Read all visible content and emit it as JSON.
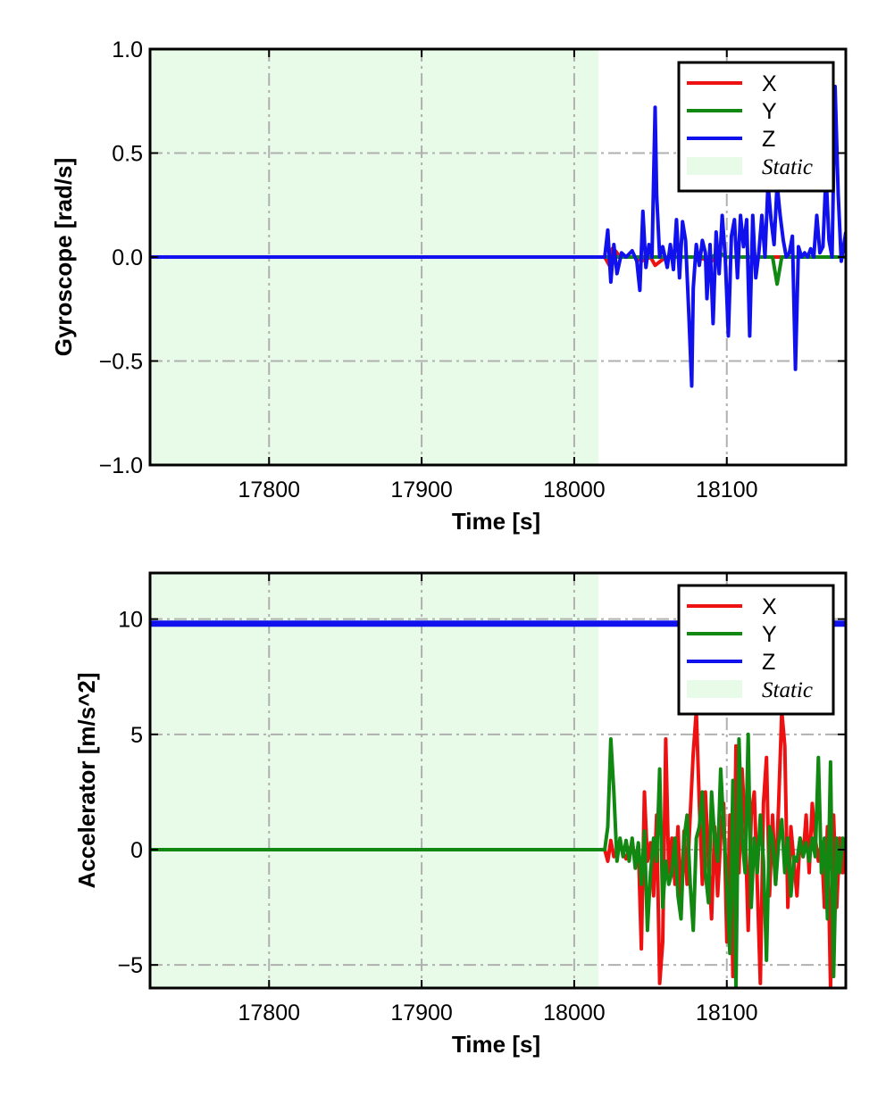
{
  "chart_data": [
    {
      "type": "line",
      "xlabel": "Time [s]",
      "ylabel": "Gyroscope [rad/s]",
      "xlim": [
        17722,
        18178
      ],
      "ylim": [
        -1.0,
        1.0
      ],
      "xticks": [
        17800,
        17900,
        18000,
        18100
      ],
      "xtick_labels": [
        "17800",
        "17900",
        "18000",
        "18100"
      ],
      "yticks": [
        1.0,
        0.5,
        0.0,
        -0.5,
        -1.0
      ],
      "ytick_labels": [
        "1.0",
        "0.5",
        "0.0",
        "−0.5",
        "−1.0"
      ],
      "grid": true,
      "legend_position": "top-right",
      "static_region": {
        "label": "Static",
        "x_start": 17722,
        "x_end": 18016,
        "color": "#e8fbe8"
      },
      "series": [
        {
          "name": "X",
          "color": "#ee1111",
          "x": [
            17722,
            18020,
            18023,
            18025,
            18027,
            18030,
            18040,
            18044,
            18050,
            18053,
            18060,
            18080,
            18090,
            18095,
            18100,
            18120,
            18130,
            18150,
            18178
          ],
          "y": [
            0,
            0,
            -0.04,
            0.04,
            0.03,
            0,
            0,
            -0.02,
            0,
            -0.04,
            0,
            0,
            -0.02,
            0.02,
            0,
            0,
            0,
            0,
            0
          ]
        },
        {
          "name": "Y",
          "color": "#118811",
          "x": [
            17722,
            18020,
            18060,
            18090,
            18095,
            18100,
            18120,
            18130,
            18133,
            18136,
            18140,
            18178
          ],
          "y": [
            0,
            0,
            0,
            0,
            0.02,
            0,
            0,
            0,
            -0.13,
            0,
            0,
            0
          ]
        },
        {
          "name": "Z",
          "color": "#1111ee",
          "x": [
            17722,
            18020,
            18022,
            18024,
            18026,
            18028,
            18031,
            18034,
            18038,
            18041,
            18043,
            18045,
            18047,
            18049,
            18051,
            18053,
            18054,
            18056,
            18058,
            18061,
            18063,
            18065,
            18067,
            18069,
            18071,
            18073,
            18075,
            18077,
            18078,
            18080,
            18082,
            18084,
            18086,
            18087,
            18089,
            18091,
            18093,
            18095,
            18097,
            18099,
            18101,
            18103,
            18105,
            18107,
            18109,
            18111,
            18113,
            18115,
            18117,
            18119,
            18121,
            18123,
            18125,
            18127,
            18129,
            18131,
            18133,
            18135,
            18137,
            18139,
            18141,
            18143,
            18145,
            18147,
            18149,
            18151,
            18153,
            18155,
            18157,
            18159,
            18161,
            18163,
            18165,
            18167,
            18169,
            18171,
            18173,
            18175,
            18178
          ],
          "y": [
            0,
            0,
            0.13,
            -0.12,
            0.06,
            -0.08,
            0.02,
            0,
            0.03,
            -0.02,
            -0.16,
            0.22,
            -0.05,
            0.06,
            0,
            0.72,
            0.3,
            0,
            0.05,
            -0.05,
            0.06,
            -0.06,
            0.18,
            -0.1,
            0.17,
            0.08,
            -0.25,
            -0.62,
            -0.15,
            0.06,
            -0.04,
            0.08,
            0.02,
            -0.2,
            0.06,
            -0.32,
            0.12,
            -0.08,
            0.2,
            0,
            -0.38,
            0.1,
            0.18,
            -0.1,
            0.2,
            0.05,
            0.18,
            -0.38,
            0.2,
            -0.1,
            0.02,
            0.2,
            0,
            0.35,
            0.18,
            0.06,
            0.35,
            0.2,
            0.08,
            0,
            0.02,
            0.1,
            -0.54,
            0.05,
            0,
            0.02,
            0,
            0.04,
            0,
            0.2,
            0.02,
            0.05,
            0.4,
            0.08,
            0,
            0.82,
            0.3,
            -0.02,
            0.12
          ]
        }
      ]
    },
    {
      "type": "line",
      "xlabel": "Time [s]",
      "ylabel": "Accelerator [m/s^2]",
      "xlim": [
        17722,
        18178
      ],
      "ylim": [
        -6,
        12
      ],
      "xticks": [
        17800,
        17900,
        18000,
        18100
      ],
      "xtick_labels": [
        "17800",
        "17900",
        "18000",
        "18100"
      ],
      "yticks": [
        10,
        5,
        0,
        -5
      ],
      "ytick_labels": [
        "10",
        "5",
        "0",
        "−5"
      ],
      "grid": true,
      "legend_position": "top-right",
      "static_region": {
        "label": "Static",
        "x_start": 17722,
        "x_end": 18016,
        "color": "#e8fbe8"
      },
      "series": [
        {
          "name": "X",
          "color": "#ee1111",
          "x": [
            17722,
            18020,
            18022,
            18024,
            18026,
            18030,
            18034,
            18038,
            18040,
            18042,
            18044,
            18046,
            18048,
            18050,
            18052,
            18054,
            18056,
            18058,
            18060,
            18062,
            18064,
            18066,
            18068,
            18070,
            18072,
            18074,
            18076,
            18078,
            18080,
            18082,
            18084,
            18086,
            18088,
            18090,
            18092,
            18094,
            18096,
            18098,
            18100,
            18102,
            18104,
            18106,
            18108,
            18110,
            18112,
            18114,
            18116,
            18118,
            18120,
            18122,
            18124,
            18126,
            18128,
            18130,
            18132,
            18134,
            18136,
            18138,
            18140,
            18142,
            18144,
            18146,
            18148,
            18150,
            18152,
            18154,
            18156,
            18158,
            18160,
            18162,
            18164,
            18166,
            18168,
            18170,
            18172,
            18174,
            18176,
            18178
          ],
          "y": [
            0,
            0,
            -0.5,
            0.4,
            -0.3,
            0.2,
            -0.4,
            0.3,
            -0.5,
            0.2,
            -4.3,
            2.5,
            -0.5,
            0.3,
            -2.0,
            1.5,
            -5.8,
            -4.0,
            4.8,
            -1.0,
            0.5,
            -1.5,
            1.0,
            -2.5,
            0.8,
            -1.5,
            1.5,
            4.2,
            6.0,
            2.0,
            -1.5,
            2.5,
            -0.5,
            -3.0,
            1.0,
            -2.0,
            0.5,
            2.0,
            -4.0,
            1.5,
            -5.5,
            4.5,
            -1.0,
            3.5,
            1.0,
            -3.5,
            1.5,
            2.5,
            -1.5,
            -5.8,
            2.0,
            4.0,
            -2.0,
            1.5,
            -1.5,
            2.0,
            6.0,
            4.5,
            -2.5,
            1.0,
            -0.5,
            -2.0,
            0.5,
            -0.3,
            1.5,
            -1.0,
            2.0,
            0.5,
            -0.5,
            0.3,
            -2.5,
            1.0,
            -6.0,
            1.5,
            -2.5,
            0.5,
            -1.0,
            0.5
          ]
        },
        {
          "name": "Y",
          "color": "#118811",
          "x": [
            17722,
            18020,
            18022,
            18024,
            18026,
            18028,
            18030,
            18032,
            18034,
            18036,
            18038,
            18040,
            18042,
            18044,
            18046,
            18048,
            18050,
            18052,
            18054,
            18056,
            18058,
            18060,
            18062,
            18064,
            18066,
            18068,
            18070,
            18072,
            18074,
            18076,
            18078,
            18080,
            18082,
            18084,
            18086,
            18088,
            18090,
            18092,
            18094,
            18096,
            18098,
            18100,
            18102,
            18104,
            18106,
            18108,
            18110,
            18112,
            18114,
            18116,
            18118,
            18120,
            18122,
            18124,
            18126,
            18128,
            18130,
            18132,
            18134,
            18136,
            18138,
            18140,
            18142,
            18144,
            18146,
            18148,
            18150,
            18152,
            18154,
            18156,
            18158,
            18160,
            18162,
            18164,
            18166,
            18168,
            18170,
            18172,
            18174,
            18176,
            18178
          ],
          "y": [
            0,
            0,
            1.0,
            4.8,
            2.5,
            -0.5,
            0.5,
            -0.3,
            0.4,
            -0.5,
            0.5,
            -0.8,
            0.3,
            -1.5,
            0.8,
            -3.5,
            -1.0,
            0.5,
            -0.5,
            3.5,
            -2.5,
            -0.5,
            -1.5,
            -1.0,
            0.5,
            -2.0,
            -3.0,
            0.5,
            1.5,
            -1.5,
            -3.5,
            0.5,
            1.0,
            2.5,
            -1.0,
            -2.3,
            2.5,
            0.5,
            -0.5,
            3.5,
            1.0,
            -1.5,
            -4.5,
            3.0,
            -6.0,
            4.8,
            0.5,
            -1.0,
            5.0,
            -2.5,
            0.5,
            -1.0,
            1.5,
            -0.5,
            -4.8,
            1.0,
            0.5,
            -1.5,
            0.3,
            1.3,
            -1.0,
            0.5,
            -2.0,
            -0.3,
            -0.5,
            0.5,
            -0.3,
            0.3,
            -0.5,
            0.5,
            -0.3,
            4.0,
            -1.0,
            0.5,
            -3.0,
            3.8,
            -5.5,
            0.5,
            -1.0,
            0.5,
            0
          ]
        },
        {
          "name": "Z",
          "color": "#1111ee",
          "x": [
            17722,
            17800,
            17900,
            18000,
            18020,
            18100,
            18178
          ],
          "y": [
            9.8,
            9.8,
            9.8,
            9.8,
            9.8,
            9.8,
            9.8
          ]
        }
      ]
    }
  ]
}
